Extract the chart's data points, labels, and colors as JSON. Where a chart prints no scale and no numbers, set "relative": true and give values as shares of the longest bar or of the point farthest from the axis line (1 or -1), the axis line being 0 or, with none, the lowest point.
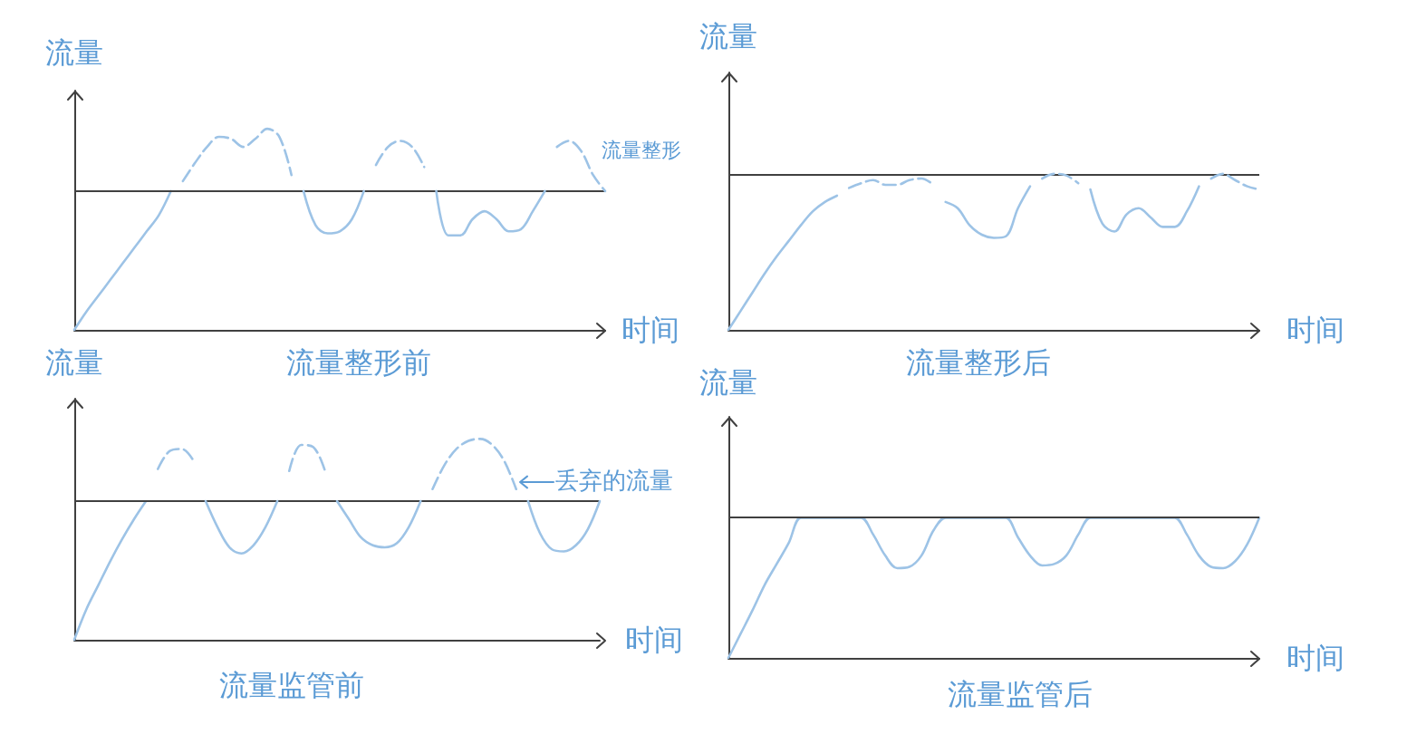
{
  "chart_data": [
    {
      "type": "line",
      "title": "流量整形前",
      "xlabel": "时间",
      "ylabel": "流量",
      "relative": true,
      "marker": "none",
      "categories": [
        null,
        null,
        null,
        null,
        null,
        null,
        null,
        null,
        null,
        null,
        null,
        null,
        null,
        null,
        null,
        null,
        null,
        null,
        null,
        null,
        null,
        null,
        null,
        null,
        null,
        null,
        null,
        null,
        null,
        null,
        null,
        null,
        null,
        null,
        null,
        null,
        null,
        null,
        null,
        null,
        null,
        null,
        null,
        null,
        null
      ],
      "series": [
        {
          "color": "#9dc3e6",
          "line_style": "solid",
          "values": [
            0,
            0.09,
            0.17,
            0.25,
            0.33,
            0.41,
            0.49,
            0.57,
            0.69,
            null,
            null,
            null,
            null,
            null,
            null,
            null,
            null,
            null,
            null,
            null,
            null,
            null,
            null,
            null,
            null,
            null,
            null,
            null,
            null,
            null,
            null,
            null,
            null,
            null,
            null,
            null,
            null,
            null,
            null,
            null,
            null,
            null,
            null,
            null,
            null
          ]
        },
        {
          "color": "#9dc3e6",
          "line_style": "dashed",
          "values": [
            null,
            null,
            null,
            null,
            null,
            null,
            null,
            null,
            null,
            0.74,
            0.83,
            0.91,
            0.96,
            0.95,
            0.91,
            0.95,
            1,
            0.96,
            0.77,
            null,
            null,
            null,
            null,
            null,
            null,
            null,
            null,
            null,
            null,
            null,
            null,
            null,
            null,
            null,
            null,
            null,
            null,
            null,
            null,
            null,
            null,
            null,
            null,
            null,
            null
          ]
        },
        {
          "color": "#9dc3e6",
          "line_style": "solid",
          "values": [
            null,
            null,
            null,
            null,
            null,
            null,
            null,
            null,
            null,
            null,
            null,
            null,
            null,
            null,
            null,
            null,
            null,
            null,
            null,
            0.69,
            0.52,
            0.48,
            0.49,
            0.55,
            0.69,
            null,
            null,
            null,
            null,
            null,
            null,
            null,
            null,
            null,
            null,
            null,
            null,
            null,
            null,
            null,
            null,
            null,
            null,
            null,
            null
          ]
        },
        {
          "color": "#9dc3e6",
          "line_style": "dashed",
          "values": [
            null,
            null,
            null,
            null,
            null,
            null,
            null,
            null,
            null,
            null,
            null,
            null,
            null,
            null,
            null,
            null,
            null,
            null,
            null,
            null,
            null,
            null,
            null,
            null,
            null,
            0.82,
            0.91,
            0.94,
            0.91,
            0.81,
            null,
            null,
            null,
            null,
            null,
            null,
            null,
            null,
            null,
            null,
            null,
            null,
            null,
            null,
            null
          ]
        },
        {
          "color": "#9dc3e6",
          "line_style": "solid",
          "values": [
            null,
            null,
            null,
            null,
            null,
            null,
            null,
            null,
            null,
            null,
            null,
            null,
            null,
            null,
            null,
            null,
            null,
            null,
            null,
            null,
            null,
            null,
            null,
            null,
            null,
            null,
            null,
            null,
            null,
            null,
            0.69,
            0.47,
            0.47,
            0.55,
            0.59,
            0.55,
            0.49,
            0.5,
            0.59,
            0.69,
            null,
            null,
            null,
            null,
            null
          ]
        },
        {
          "color": "#9dc3e6",
          "line_style": "dashed",
          "values": [
            null,
            null,
            null,
            null,
            null,
            null,
            null,
            null,
            null,
            null,
            null,
            null,
            null,
            null,
            null,
            null,
            null,
            null,
            null,
            null,
            null,
            null,
            null,
            null,
            null,
            null,
            null,
            null,
            null,
            null,
            null,
            null,
            null,
            null,
            null,
            null,
            null,
            null,
            null,
            null,
            0.91,
            0.94,
            0.89,
            0.77,
            0.69
          ]
        }
      ],
      "ref_lines": [
        {
          "axis": "y",
          "value": 0.69,
          "color": "#404040"
        }
      ],
      "annotations": [
        "流量整形"
      ]
    },
    {
      "type": "line",
      "title": "流量整形后",
      "xlabel": "时间",
      "ylabel": "流量",
      "relative": true,
      "marker": "none",
      "categories": [
        null,
        null,
        null,
        null,
        null,
        null,
        null,
        null,
        null,
        null,
        null,
        null,
        null,
        null,
        null,
        null,
        null,
        null,
        null,
        null,
        null,
        null,
        null,
        null,
        null,
        null,
        null,
        null,
        null,
        null,
        null,
        null,
        null,
        null,
        null,
        null,
        null,
        null,
        null,
        null,
        null,
        null,
        null,
        null,
        null
      ],
      "series": [
        {
          "color": "#9dc3e6",
          "line_style": "solid",
          "values": [
            0,
            0.12,
            0.24,
            0.36,
            0.47,
            0.57,
            0.67,
            0.76,
            0.82,
            0.86,
            null,
            null,
            null,
            null,
            null,
            null,
            null,
            null,
            null,
            null,
            null,
            null,
            null,
            null,
            null,
            null,
            null,
            null,
            null,
            null,
            null,
            null,
            null,
            null,
            null,
            null,
            null,
            null,
            null,
            null,
            null,
            null,
            null,
            null,
            null
          ]
        },
        {
          "color": "#9dc3e6",
          "line_style": "dashed",
          "values": [
            null,
            null,
            null,
            null,
            null,
            null,
            null,
            null,
            null,
            null,
            0.91,
            0.94,
            0.96,
            0.93,
            0.93,
            0.96,
            0.97,
            0.93,
            null,
            null,
            null,
            null,
            null,
            null,
            null,
            null,
            null,
            null,
            null,
            null,
            null,
            null,
            null,
            null,
            null,
            null,
            null,
            null,
            null,
            null,
            null,
            null,
            null,
            null,
            null
          ]
        },
        {
          "color": "#9dc3e6",
          "line_style": "solid",
          "values": [
            null,
            null,
            null,
            null,
            null,
            null,
            null,
            null,
            null,
            null,
            null,
            null,
            null,
            null,
            null,
            null,
            null,
            null,
            0.82,
            0.78,
            0.67,
            0.61,
            0.59,
            0.6,
            0.78,
            0.92,
            null,
            null,
            null,
            null,
            null,
            null,
            null,
            null,
            null,
            null,
            null,
            null,
            null,
            null,
            null,
            null,
            null,
            null,
            null
          ]
        },
        {
          "color": "#9dc3e6",
          "line_style": "dashed",
          "values": [
            null,
            null,
            null,
            null,
            null,
            null,
            null,
            null,
            null,
            null,
            null,
            null,
            null,
            null,
            null,
            null,
            null,
            null,
            null,
            null,
            null,
            null,
            null,
            null,
            null,
            null,
            0.97,
            1,
            0.99,
            0.94,
            null,
            null,
            null,
            null,
            null,
            null,
            null,
            null,
            null,
            null,
            null,
            null,
            null,
            null,
            null
          ]
        },
        {
          "color": "#9dc3e6",
          "line_style": "solid",
          "values": [
            null,
            null,
            null,
            null,
            null,
            null,
            null,
            null,
            null,
            null,
            null,
            null,
            null,
            null,
            null,
            null,
            null,
            null,
            null,
            null,
            null,
            null,
            null,
            null,
            null,
            null,
            null,
            null,
            null,
            null,
            0.9,
            0.68,
            0.63,
            0.74,
            0.78,
            0.72,
            0.66,
            0.66,
            0.76,
            0.92,
            null,
            null,
            null,
            null,
            null
          ]
        },
        {
          "color": "#9dc3e6",
          "line_style": "dashed",
          "values": [
            null,
            null,
            null,
            null,
            null,
            null,
            null,
            null,
            null,
            null,
            null,
            null,
            null,
            null,
            null,
            null,
            null,
            null,
            null,
            null,
            null,
            null,
            null,
            null,
            null,
            null,
            null,
            null,
            null,
            null,
            null,
            null,
            null,
            null,
            null,
            null,
            null,
            null,
            null,
            null,
            0.97,
            1,
            0.96,
            0.92,
            0.9
          ]
        }
      ],
      "ref_lines": [
        {
          "axis": "y",
          "value": 1,
          "color": "#404040"
        }
      ]
    },
    {
      "type": "line",
      "title": "流量监管前",
      "xlabel": "时间",
      "ylabel": "流量",
      "relative": true,
      "marker": "none",
      "categories": [
        null,
        null,
        null,
        null,
        null,
        null,
        null,
        null,
        null,
        null,
        null,
        null,
        null,
        null,
        null,
        null,
        null,
        null,
        null,
        null,
        null,
        null,
        null,
        null,
        null,
        null,
        null,
        null,
        null,
        null,
        null,
        null,
        null,
        null,
        null,
        null,
        null,
        null,
        null,
        null,
        null,
        null,
        null,
        null,
        null
      ],
      "series": [
        {
          "color": "#9dc3e6",
          "line_style": "solid",
          "values": [
            0,
            0.15,
            0.27,
            0.39,
            0.5,
            0.6,
            0.69,
            null,
            null,
            null,
            null,
            null,
            null,
            null,
            null,
            null,
            null,
            null,
            null,
            null,
            null,
            null,
            null,
            null,
            null,
            null,
            null,
            null,
            null,
            null,
            null,
            null,
            null,
            null,
            null,
            null,
            null,
            null,
            null,
            null,
            null,
            null,
            null,
            null,
            null
          ]
        },
        {
          "color": "#9dc3e6",
          "line_style": "dashed",
          "values": [
            null,
            null,
            null,
            null,
            null,
            null,
            null,
            0.85,
            0.94,
            0.95,
            0.89,
            null,
            null,
            null,
            null,
            null,
            null,
            null,
            null,
            null,
            null,
            null,
            null,
            null,
            null,
            null,
            null,
            null,
            null,
            null,
            null,
            null,
            null,
            null,
            null,
            null,
            null,
            null,
            null,
            null,
            null,
            null,
            null,
            null,
            null
          ]
        },
        {
          "color": "#9dc3e6",
          "line_style": "solid",
          "values": [
            null,
            null,
            null,
            null,
            null,
            null,
            null,
            null,
            null,
            null,
            null,
            0.69,
            0.56,
            0.46,
            0.43,
            0.47,
            0.56,
            0.69,
            null,
            null,
            null,
            null,
            null,
            null,
            null,
            null,
            null,
            null,
            null,
            null,
            null,
            null,
            null,
            null,
            null,
            null,
            null,
            null,
            null,
            null,
            null,
            null,
            null,
            null,
            null
          ]
        },
        {
          "color": "#9dc3e6",
          "line_style": "dashed",
          "values": [
            null,
            null,
            null,
            null,
            null,
            null,
            null,
            null,
            null,
            null,
            null,
            null,
            null,
            null,
            null,
            null,
            null,
            null,
            0.84,
            0.97,
            0.96,
            0.84,
            null,
            null,
            null,
            null,
            null,
            null,
            null,
            null,
            null,
            null,
            null,
            null,
            null,
            null,
            null,
            null,
            null,
            null,
            null,
            null,
            null,
            null,
            null
          ]
        },
        {
          "color": "#9dc3e6",
          "line_style": "solid",
          "values": [
            null,
            null,
            null,
            null,
            null,
            null,
            null,
            null,
            null,
            null,
            null,
            null,
            null,
            null,
            null,
            null,
            null,
            null,
            null,
            null,
            null,
            null,
            0.69,
            0.6,
            0.51,
            0.47,
            0.46,
            0.48,
            0.56,
            0.69,
            null,
            null,
            null,
            null,
            null,
            null,
            null,
            null,
            null,
            null,
            null,
            null,
            null,
            null,
            null
          ]
        },
        {
          "color": "#9dc3e6",
          "line_style": "dashed",
          "values": [
            null,
            null,
            null,
            null,
            null,
            null,
            null,
            null,
            null,
            null,
            null,
            null,
            null,
            null,
            null,
            null,
            null,
            null,
            null,
            null,
            null,
            null,
            null,
            null,
            null,
            null,
            null,
            null,
            null,
            null,
            0.75,
            0.87,
            0.95,
            0.99,
            1,
            0.97,
            0.89,
            0.75,
            null,
            null,
            null,
            null,
            null,
            null,
            null
          ]
        },
        {
          "color": "#9dc3e6",
          "line_style": "solid",
          "values": [
            null,
            null,
            null,
            null,
            null,
            null,
            null,
            null,
            null,
            null,
            null,
            null,
            null,
            null,
            null,
            null,
            null,
            null,
            null,
            null,
            null,
            null,
            null,
            null,
            null,
            null,
            null,
            null,
            null,
            null,
            null,
            null,
            null,
            null,
            null,
            null,
            null,
            null,
            0.69,
            0.53,
            0.45,
            0.44,
            0.47,
            0.55,
            0.69
          ]
        }
      ],
      "ref_lines": [
        {
          "axis": "y",
          "value": 0.69,
          "color": "#404040"
        }
      ],
      "annotations": [
        "丢弃的流量"
      ]
    },
    {
      "type": "line",
      "title": "流量监管后",
      "xlabel": "时间",
      "ylabel": "流量",
      "relative": true,
      "marker": "none",
      "categories": [
        null,
        null,
        null,
        null,
        null,
        null,
        null,
        null,
        null,
        null,
        null,
        null,
        null,
        null,
        null,
        null,
        null,
        null,
        null,
        null,
        null,
        null,
        null,
        null,
        null,
        null,
        null,
        null,
        null,
        null,
        null,
        null,
        null,
        null,
        null,
        null,
        null,
        null,
        null,
        null,
        null,
        null,
        null,
        null,
        null
      ],
      "series": [
        {
          "color": "#9dc3e6",
          "line_style": "solid",
          "values": [
            0,
            0.17,
            0.34,
            0.52,
            0.67,
            0.82,
            1,
            1,
            1,
            1,
            1,
            1,
            0.88,
            0.73,
            0.64,
            0.65,
            0.73,
            0.91,
            1,
            1,
            1,
            1,
            1,
            1,
            0.86,
            0.73,
            0.66,
            0.67,
            0.73,
            0.88,
            1,
            1,
            1,
            1,
            1,
            1,
            1,
            1,
            0.88,
            0.73,
            0.65,
            0.64,
            0.69,
            0.81,
            1
          ]
        }
      ],
      "ref_lines": [
        {
          "axis": "y",
          "value": 1,
          "color": "#404040"
        }
      ]
    }
  ]
}
